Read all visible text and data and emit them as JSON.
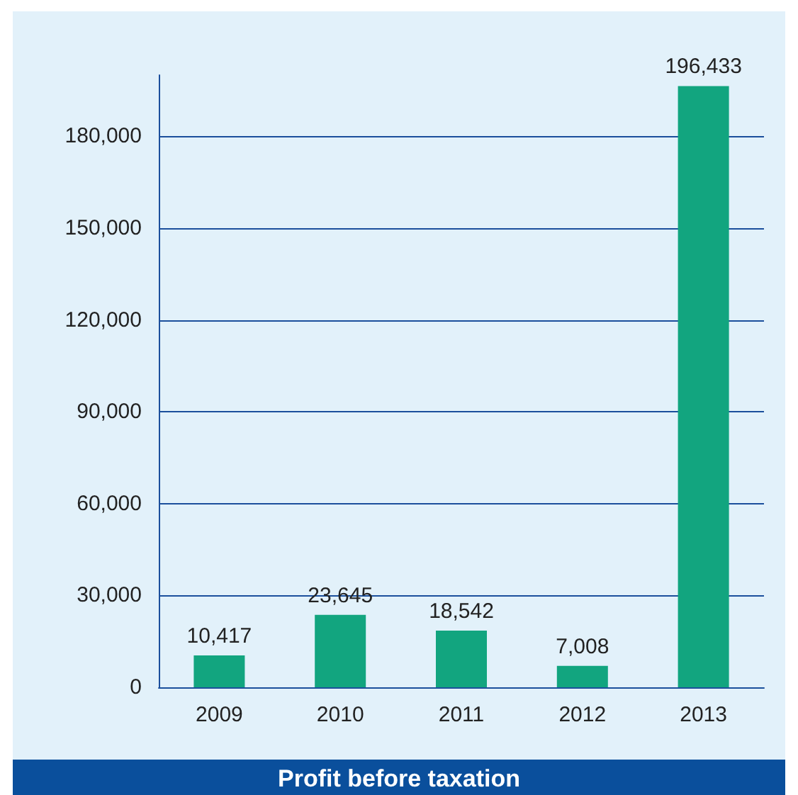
{
  "chart_data": {
    "type": "bar",
    "title": "Profit before taxation",
    "categories": [
      "2009",
      "2010",
      "2011",
      "2012",
      "2013"
    ],
    "values": [
      10417,
      23645,
      18542,
      7008,
      196433
    ],
    "value_labels": [
      "10,417",
      "23,645",
      "18,542",
      "7,008",
      "196,433"
    ],
    "color": "#12a57f",
    "ylim": [
      0,
      200000
    ],
    "yticks": [
      0,
      {
        "value": 30000,
        "label": "30,000"
      },
      {
        "value": 60000,
        "label": "60,000"
      },
      {
        "value": 90000,
        "label": "90,000"
      },
      {
        "value": 120000,
        "label": "120,000"
      },
      {
        "value": 150000,
        "label": "150,000"
      },
      {
        "value": 180000,
        "label": "180,000"
      }
    ],
    "grid": "y"
  }
}
